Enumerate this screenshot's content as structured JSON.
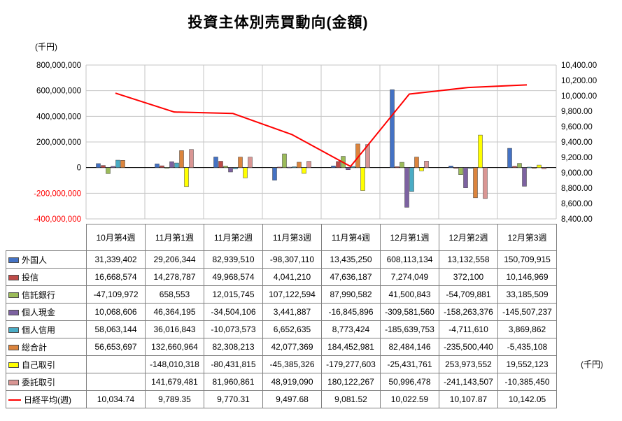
{
  "chart_data": {
    "type": "bar",
    "title": "投資主体別売買動向(金額)",
    "categories": [
      "10月第4週",
      "11月第1週",
      "11月第2週",
      "11月第3週",
      "11月第4週",
      "12月第1週",
      "12月第2週",
      "12月第3週"
    ],
    "left_axis": {
      "unit": "(千円)",
      "min": -400000000,
      "max": 800000000,
      "step": 200000000,
      "negative_tick_color": "#ff0000"
    },
    "right_axis": {
      "unit": "(千円)",
      "min": 8400,
      "max": 10400,
      "step": 200
    },
    "grid": "on",
    "legend_position": "table-left",
    "line_color": "#ff0000",
    "series": [
      {
        "name": "外国人",
        "type": "bar",
        "color": "#4472C4",
        "values": [
          31339402,
          29206344,
          82939510,
          -98307110,
          13435250,
          608113134,
          13132558,
          150709915
        ]
      },
      {
        "name": "投信",
        "type": "bar",
        "color": "#BE4B48",
        "values": [
          16668574,
          14278787,
          49968574,
          4041210,
          47636187,
          7274049,
          372100,
          10146969
        ]
      },
      {
        "name": "信託銀行",
        "type": "bar",
        "color": "#9BBB59",
        "values": [
          -47109972,
          658553,
          12015745,
          107122594,
          87990582,
          41500843,
          -54709881,
          33185509
        ]
      },
      {
        "name": "個人現金",
        "type": "bar",
        "color": "#7D62A1",
        "values": [
          10068606,
          46364195,
          -34504106,
          3441887,
          -16845896,
          -309581560,
          -158263376,
          -145507237
        ]
      },
      {
        "name": "個人信用",
        "type": "bar",
        "color": "#4AACC5",
        "values": [
          58063144,
          36016843,
          -10073573,
          6652635,
          8773424,
          -185639753,
          -4711610,
          3869862
        ]
      },
      {
        "name": "総合計",
        "type": "bar",
        "color": "#DB843D",
        "values": [
          56653697,
          132660964,
          82308213,
          42077369,
          184452981,
          82484146,
          -235500440,
          -5435108
        ]
      },
      {
        "name": "自己取引",
        "type": "bar",
        "color": "#FFFF00",
        "values": [
          null,
          -148010318,
          -80431815,
          -45385326,
          -179277603,
          -25431761,
          253973552,
          19552123
        ]
      },
      {
        "name": "委託取引",
        "type": "bar",
        "color": "#D99694",
        "values": [
          null,
          141679481,
          81960861,
          48919090,
          180122267,
          50996478,
          -241143507,
          -10385450
        ]
      },
      {
        "name": "日経平均(週)",
        "type": "line",
        "color": "#FF0000",
        "values": [
          10034.74,
          9789.35,
          9770.31,
          9497.68,
          9081.52,
          10022.59,
          10107.87,
          10142.05
        ]
      }
    ]
  }
}
